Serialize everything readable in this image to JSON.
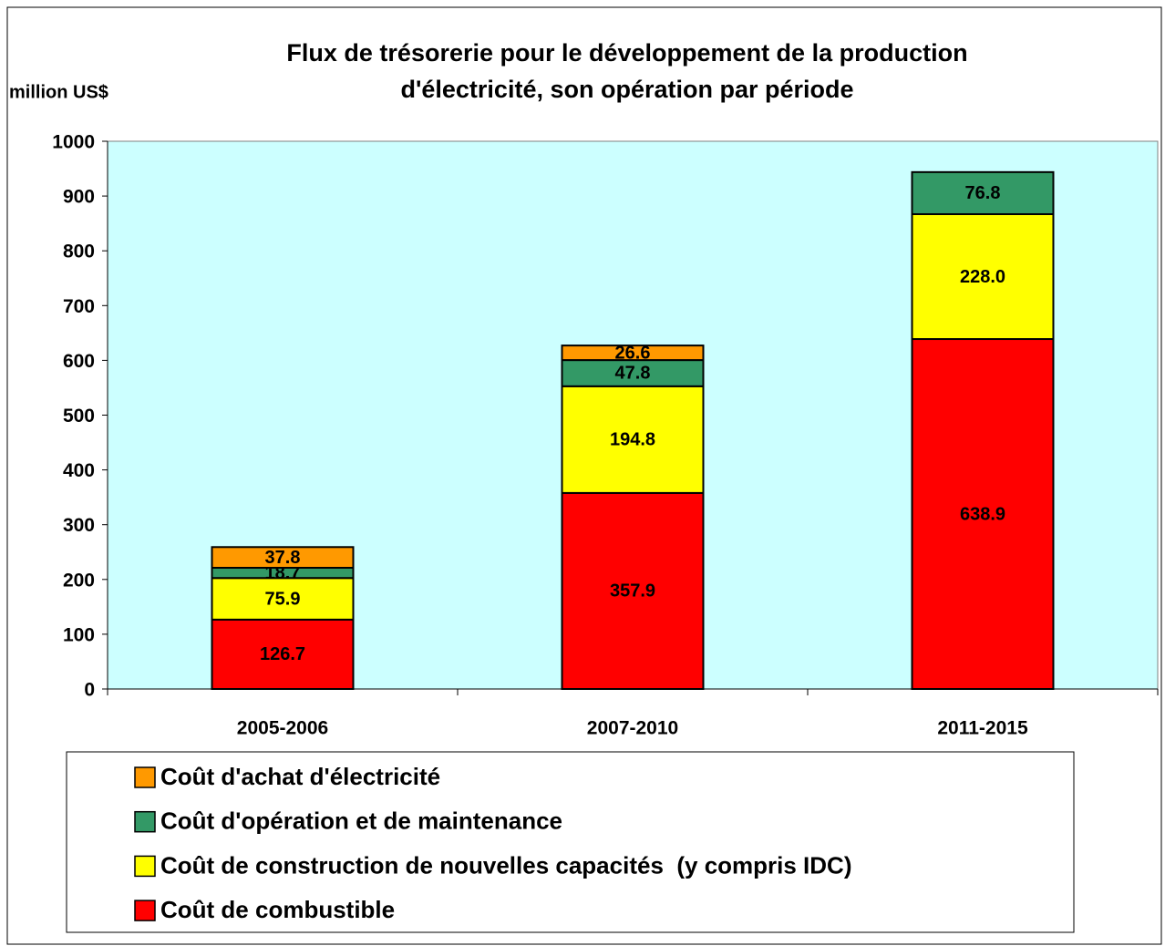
{
  "chart_data": {
    "type": "stacked_bar",
    "title": [
      "Flux de trésorerie pour le développement de la production",
      "d'électricité, son opération par période"
    ],
    "y_label": "million US$",
    "categories": [
      "2005-2006",
      "2007-2010",
      "2011-2015"
    ],
    "series": [
      {
        "name": "Coût de combustible",
        "color": "#ff0000",
        "values": [
          126.7,
          357.9,
          638.9
        ]
      },
      {
        "name": "Coût de construction de nouvelles capacités  (y compris IDC)",
        "color": "#ffff00",
        "values": [
          75.9,
          194.8,
          228
        ],
        "value_labels": [
          "75.9",
          "194.8",
          "228.0"
        ]
      },
      {
        "name": "Coût d'opération et de maintenance",
        "color": "#339966",
        "values": [
          18.7,
          47.8,
          76.8
        ]
      },
      {
        "name": "Coût d'achat d'électricité",
        "color": "#ff9900",
        "values": [
          37.8,
          26.6,
          null
        ]
      }
    ],
    "ylim": [
      0,
      1000
    ],
    "yticks": [
      0,
      100,
      200,
      300,
      400,
      500,
      600,
      700,
      800,
      900,
      1000
    ],
    "grid": false,
    "plot_background": "#ccffff"
  }
}
